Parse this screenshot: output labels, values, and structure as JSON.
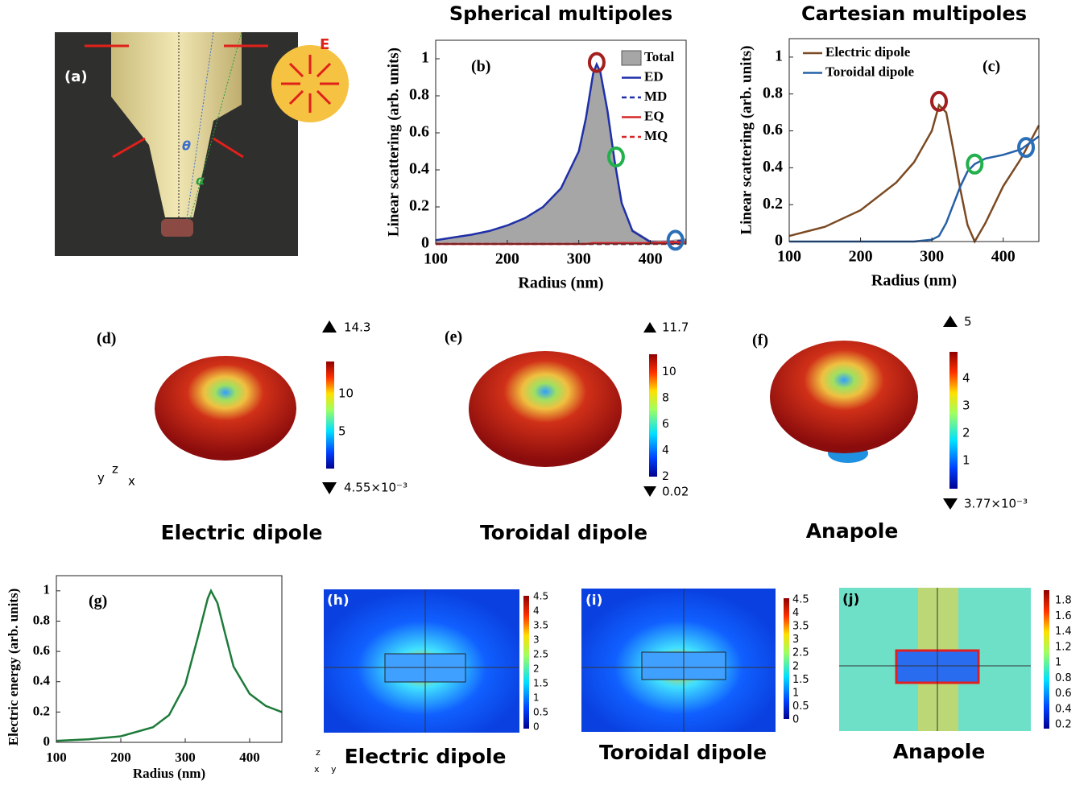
{
  "chart_data": [
    {
      "type": "line",
      "title": "Spherical multipoles",
      "xlabel": "Radius (nm)",
      "ylabel": "Linear scattering (arb. units)",
      "annotation": "(b)",
      "x": [
        100,
        125,
        150,
        175,
        200,
        225,
        250,
        275,
        300,
        310,
        320,
        325,
        330,
        340,
        350,
        360,
        375,
        400,
        425,
        450
      ],
      "series": [
        {
          "name": "Total",
          "color": "#a6a6a6",
          "style": "area",
          "values": [
            0.02,
            0.035,
            0.05,
            0.07,
            0.1,
            0.14,
            0.2,
            0.3,
            0.5,
            0.68,
            0.92,
            0.97,
            0.93,
            0.72,
            0.46,
            0.23,
            0.08,
            0.02,
            0.02,
            0.03
          ]
        },
        {
          "name": "ED",
          "color": "#1f2fa8",
          "style": "solid",
          "values": [
            0.02,
            0.035,
            0.05,
            0.07,
            0.1,
            0.14,
            0.2,
            0.3,
            0.5,
            0.68,
            0.92,
            0.97,
            0.93,
            0.72,
            0.45,
            0.22,
            0.07,
            0.01,
            0.005,
            0.01
          ]
        },
        {
          "name": "MD",
          "color": "#1f2fa8",
          "style": "dashed",
          "values": [
            0,
            0,
            0,
            0,
            0,
            0,
            0,
            0,
            0,
            0,
            0,
            0,
            0,
            0,
            0,
            0,
            0,
            0.005,
            0.01,
            0.02
          ]
        },
        {
          "name": "EQ",
          "color": "#d62728",
          "style": "solid",
          "values": [
            0,
            0,
            0,
            0,
            0,
            0,
            0,
            0,
            0,
            0,
            0.005,
            0.005,
            0.005,
            0.005,
            0.005,
            0.005,
            0.005,
            0.005,
            0.01,
            0.01
          ]
        },
        {
          "name": "MQ",
          "color": "#d62728",
          "style": "dashed",
          "values": [
            0,
            0,
            0,
            0,
            0,
            0,
            0,
            0,
            0,
            0,
            0,
            0,
            0,
            0,
            0,
            0,
            0,
            0,
            0,
            0
          ]
        }
      ],
      "highlights": [
        {
          "x": 325,
          "y": 0.98,
          "color": "#a31f1f"
        },
        {
          "x": 352,
          "y": 0.47,
          "color": "#22b04c"
        },
        {
          "x": 435,
          "y": 0.02,
          "color": "#2a6fb8"
        }
      ],
      "legend": "upper right",
      "xlim": [
        100,
        450
      ],
      "ylim": [
        0,
        1.1
      ],
      "xticks": [
        100,
        200,
        300,
        400
      ],
      "yticks": [
        0,
        0.2,
        0.4,
        0.6,
        0.8,
        1
      ]
    },
    {
      "type": "line",
      "title": "Cartesian multipoles",
      "xlabel": "Radius (nm)",
      "ylabel": "Linear scattering (arb. units)",
      "annotation": "(c)",
      "x": [
        100,
        150,
        200,
        250,
        275,
        300,
        310,
        320,
        330,
        340,
        350,
        360,
        375,
        400,
        425,
        450
      ],
      "series": [
        {
          "name": "Electric dipole",
          "color": "#7b4a22",
          "style": "solid",
          "values": [
            0.03,
            0.08,
            0.17,
            0.32,
            0.43,
            0.6,
            0.74,
            0.7,
            0.5,
            0.28,
            0.09,
            0.0,
            0.1,
            0.3,
            0.45,
            0.63
          ]
        },
        {
          "name": "Toroidal dipole",
          "color": "#2560a8",
          "style": "solid",
          "values": [
            0,
            0,
            0,
            0,
            0,
            0.01,
            0.03,
            0.1,
            0.2,
            0.3,
            0.38,
            0.42,
            0.45,
            0.47,
            0.5,
            0.57
          ]
        }
      ],
      "highlights": [
        {
          "x": 310,
          "y": 0.76,
          "color": "#a31f1f"
        },
        {
          "x": 360,
          "y": 0.42,
          "color": "#22b04c"
        },
        {
          "x": 432,
          "y": 0.51,
          "color": "#2a6fb8"
        }
      ],
      "legend": "upper left",
      "xlim": [
        100,
        450
      ],
      "ylim": [
        0,
        1.1
      ],
      "xticks": [
        100,
        200,
        300,
        400
      ],
      "yticks": [
        0,
        0.2,
        0.4,
        0.6,
        0.8,
        1
      ]
    },
    {
      "type": "line",
      "xlabel": "Radius (nm)",
      "ylabel": "Electric energy (arb. units)",
      "annotation": "(g)",
      "x": [
        100,
        150,
        200,
        250,
        275,
        300,
        320,
        335,
        340,
        350,
        360,
        375,
        400,
        425,
        450
      ],
      "series": [
        {
          "color": "#1e7b3a",
          "style": "solid",
          "values": [
            0.01,
            0.02,
            0.04,
            0.1,
            0.18,
            0.38,
            0.7,
            0.95,
            1,
            0.92,
            0.75,
            0.5,
            0.32,
            0.24,
            0.2
          ]
        }
      ],
      "xlim": [
        100,
        450
      ],
      "ylim": [
        0,
        1.1
      ],
      "xticks": [
        100,
        200,
        300,
        400
      ],
      "yticks": [
        0,
        0.2,
        0.4,
        0.6,
        0.8,
        1
      ]
    }
  ],
  "panels": {
    "a": {
      "label": "(a)",
      "field_label": "E",
      "theta": "θ",
      "alpha": "α"
    },
    "d": {
      "label": "(d)",
      "max": "14.3",
      "min": "4.55×10⁻³",
      "ticks": [
        "10",
        "5"
      ],
      "caption": "Electric dipole",
      "axes": [
        "y",
        "z",
        "x"
      ]
    },
    "e": {
      "label": "(e)",
      "max": "11.7",
      "min": "0.02",
      "ticks": [
        "10",
        "8",
        "6",
        "4",
        "2"
      ],
      "caption": "Toroidal dipole"
    },
    "f": {
      "label": "(f)",
      "max": "5",
      "min": "3.77×10⁻³",
      "ticks": [
        "4",
        "3",
        "2",
        "1"
      ],
      "caption": "Anapole"
    },
    "h": {
      "label": "(h)",
      "ticks": [
        "4.5",
        "4",
        "3.5",
        "3",
        "2.5",
        "2",
        "1.5",
        "1",
        "0.5",
        "0"
      ],
      "caption": "Electric dipole",
      "axes": [
        "z",
        "x",
        "y"
      ]
    },
    "i": {
      "label": "(i)",
      "ticks": [
        "4.5",
        "4",
        "3.5",
        "3",
        "2.5",
        "2",
        "1.5",
        "1",
        "0.5",
        "0"
      ],
      "caption": "Toroidal dipole"
    },
    "j": {
      "label": "(j)",
      "ticks": [
        "1.8",
        "1.6",
        "1.4",
        "1.2",
        "1",
        "0.8",
        "0.6",
        "0.4",
        "0.2"
      ],
      "caption": "Anapole"
    }
  }
}
